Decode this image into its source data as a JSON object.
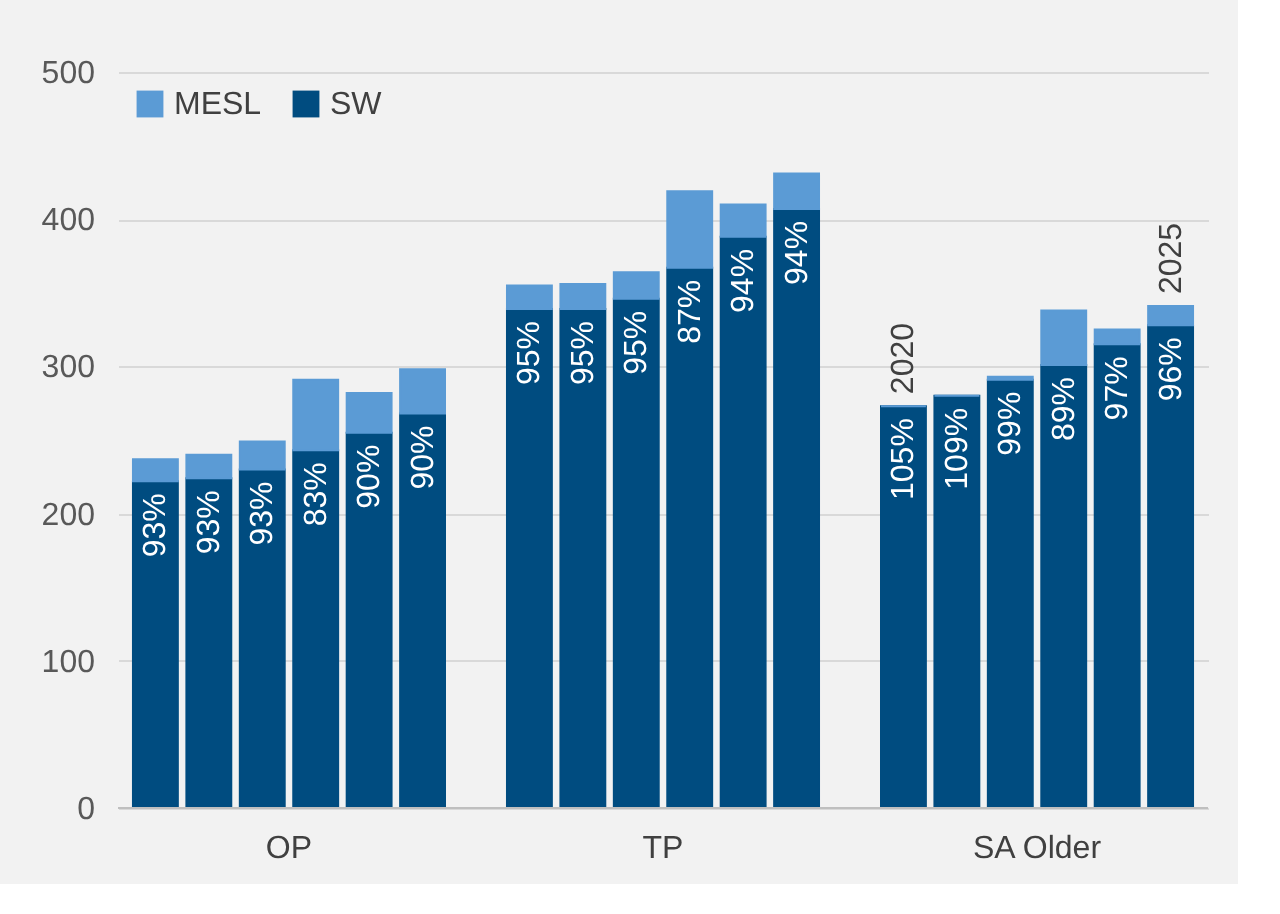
{
  "chart_data": {
    "type": "bar",
    "stacked": true,
    "categories": [
      null,
      null,
      null,
      null,
      null,
      null,
      null,
      null,
      null,
      null,
      null,
      null,
      null,
      null,
      null,
      null,
      null,
      null,
      null,
      null
    ],
    "series": [
      {
        "name": "SW",
        "color": "#004c80",
        "values": [
          222,
          224,
          230,
          243,
          255,
          268,
          null,
          339,
          339,
          346,
          367,
          388,
          407,
          null,
          273,
          280,
          291,
          301,
          315,
          328
        ]
      },
      {
        "name": "MESL",
        "color": "#5b9bd5",
        "values": [
          15,
          16,
          19,
          48,
          27,
          30,
          null,
          16,
          17,
          18,
          52,
          22,
          24,
          null,
          0,
          0,
          2,
          37,
          10,
          13
        ]
      }
    ],
    "annotations": [
      "OP",
      "TP",
      "SA Older",
      {
        "text": "93%",
        "y": 222
      },
      {
        "text": "93%",
        "y": 224
      },
      {
        "text": "93%",
        "y": 230
      },
      {
        "text": "83%",
        "y": 243
      },
      {
        "text": "90%",
        "y": 255
      },
      {
        "text": "90%",
        "y": 268
      },
      {
        "text": "95%",
        "y": 339
      },
      {
        "text": "95%",
        "y": 339
      },
      {
        "text": "95%",
        "y": 346
      },
      {
        "text": "87%",
        "y": 367
      },
      {
        "text": "94%",
        "y": 388
      },
      {
        "text": "94%",
        "y": 407
      },
      {
        "text": "105%",
        "y": 273
      },
      {
        "text": "109%",
        "y": 280
      },
      {
        "text": "99%",
        "y": 291
      },
      {
        "text": "89%",
        "y": 301
      },
      {
        "text": "97%",
        "y": 315
      },
      {
        "text": "96%",
        "y": 328
      },
      {
        "text": "2020",
        "y": 273
      },
      {
        "text": "2025",
        "y": 341
      }
    ],
    "ylim": [
      0,
      500
    ],
    "yticks": [
      0,
      100,
      200,
      300,
      400,
      500
    ],
    "grid": "y",
    "legend": "top left"
  }
}
